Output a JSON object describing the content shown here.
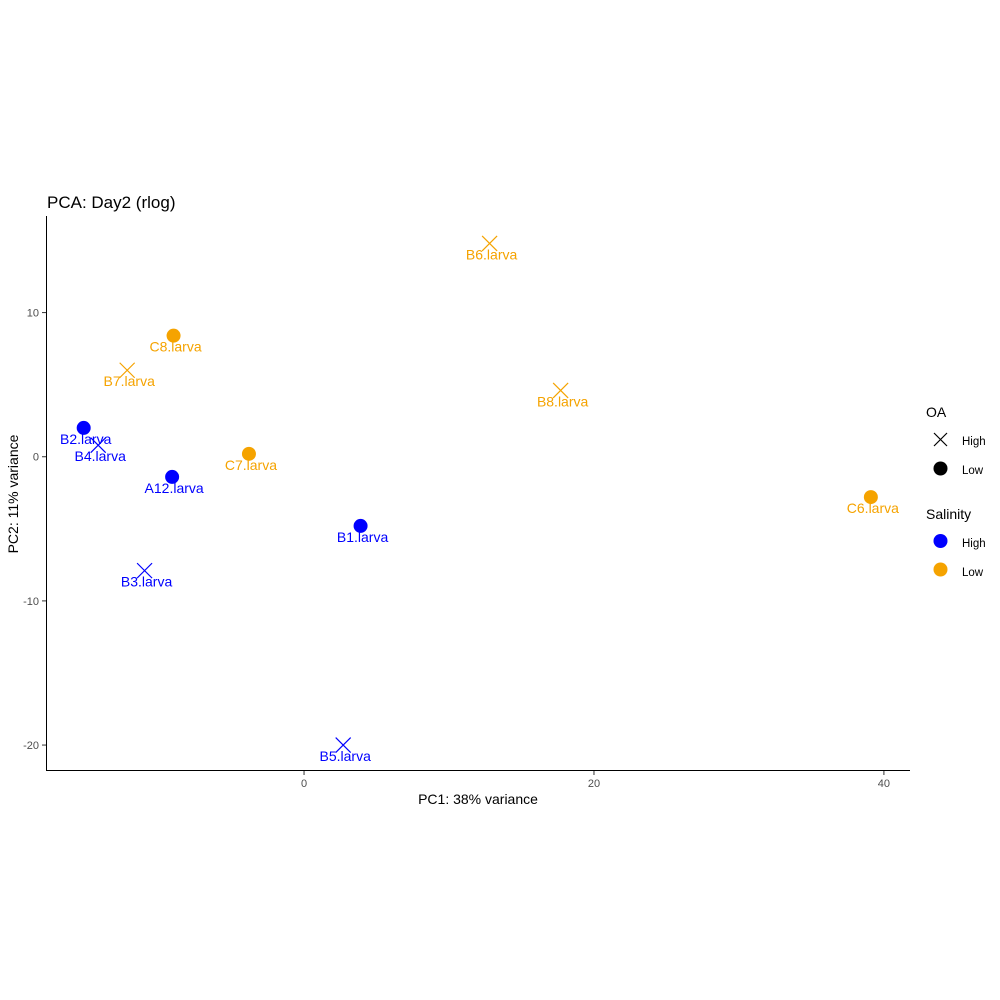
{
  "chart_data": {
    "type": "scatter",
    "title": "PCA: Day2 (rlog)",
    "xlabel": "PC1: 38% variance",
    "ylabel": "PC2: 11% variance",
    "xlim": [
      -17.8,
      41.8
    ],
    "ylim": [
      -21.8,
      16.7
    ],
    "xticks": [
      0,
      20,
      40
    ],
    "yticks": [
      10,
      0,
      -10,
      -20
    ],
    "grid": false,
    "legend_position": "right",
    "colors": {
      "High": "#0000ff",
      "Low": "#f5a300"
    },
    "points": [
      {
        "label": "B6.larva",
        "x": 12.8,
        "y": 14.8,
        "OA": "High",
        "Salinity": "Low"
      },
      {
        "label": "C8.larva",
        "x": -9.0,
        "y": 8.4,
        "OA": "Low",
        "Salinity": "Low"
      },
      {
        "label": "B7.larva",
        "x": -12.2,
        "y": 6.0,
        "OA": "High",
        "Salinity": "Low"
      },
      {
        "label": "B8.larva",
        "x": 17.7,
        "y": 4.6,
        "OA": "High",
        "Salinity": "Low"
      },
      {
        "label": "B2.larva",
        "x": -15.2,
        "y": 2.0,
        "OA": "Low",
        "Salinity": "High"
      },
      {
        "label": "B4.larva",
        "x": -14.2,
        "y": 0.8,
        "OA": "High",
        "Salinity": "High"
      },
      {
        "label": "C7.larva",
        "x": -3.8,
        "y": 0.2,
        "OA": "Low",
        "Salinity": "Low"
      },
      {
        "label": "A12.larva",
        "x": -9.1,
        "y": -1.4,
        "OA": "Low",
        "Salinity": "High"
      },
      {
        "label": "C6.larva",
        "x": 39.1,
        "y": -2.8,
        "OA": "Low",
        "Salinity": "Low"
      },
      {
        "label": "B1.larva",
        "x": 3.9,
        "y": -4.8,
        "OA": "Low",
        "Salinity": "High"
      },
      {
        "label": "B3.larva",
        "x": -11.0,
        "y": -7.9,
        "OA": "High",
        "Salinity": "High"
      },
      {
        "label": "B5.larva",
        "x": 2.7,
        "y": -20.0,
        "OA": "High",
        "Salinity": "High"
      }
    ],
    "legend": {
      "oa": {
        "title": "OA",
        "items": [
          {
            "label": "High",
            "shape": "cross"
          },
          {
            "label": "Low",
            "shape": "circle"
          }
        ]
      },
      "salinity": {
        "title": "Salinity",
        "items": [
          {
            "label": "High",
            "color": "#0000ff"
          },
          {
            "label": "Low",
            "color": "#f5a300"
          }
        ]
      }
    }
  }
}
